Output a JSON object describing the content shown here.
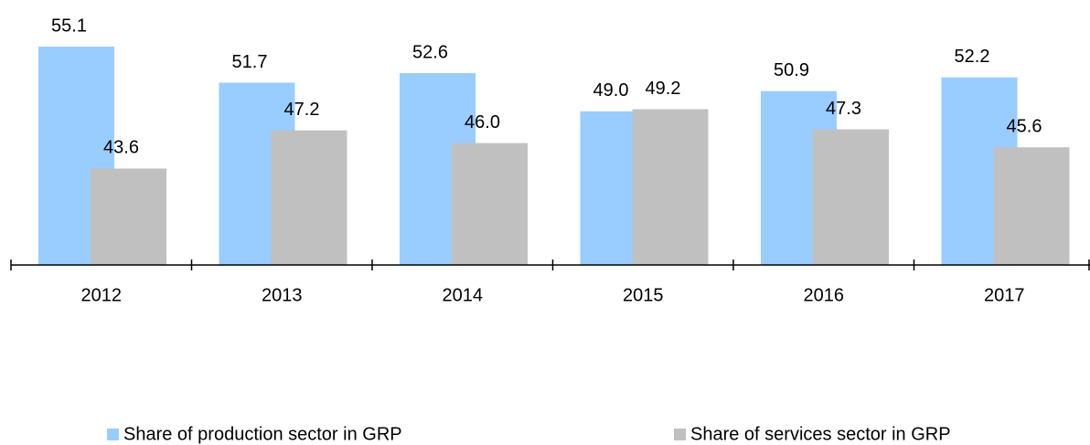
{
  "chart_data": {
    "type": "bar",
    "categories": [
      "2012",
      "2013",
      "2014",
      "2015",
      "2016",
      "2017"
    ],
    "series": [
      {
        "name": "Share of production sector in GRP",
        "color": "#99ccff",
        "values": [
          55.1,
          51.7,
          52.6,
          49.0,
          50.9,
          52.2
        ],
        "value_labels": [
          "55.1",
          "51.7",
          "52.6",
          "49.0",
          "50.9",
          "52.2"
        ]
      },
      {
        "name": "Share of services sector in GRP",
        "color": "#c0c0c0",
        "values": [
          43.6,
          47.2,
          46.0,
          49.2,
          47.3,
          45.6
        ],
        "value_labels": [
          "43.6",
          "47.2",
          "46.0",
          "49.2",
          "47.3",
          "45.6"
        ]
      }
    ],
    "ylim": [
      34.5,
      59.5
    ]
  }
}
